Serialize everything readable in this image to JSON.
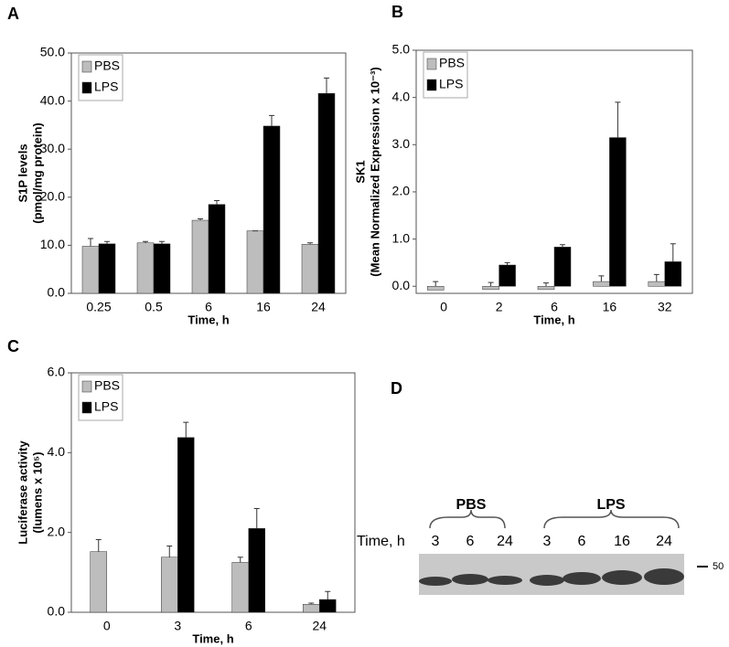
{
  "chart_data": [
    {
      "type": "bar",
      "panel": "A",
      "y_label": [
        "S1P levels",
        "(pmol/mg protein)"
      ],
      "x_label": "Time, h",
      "categories": [
        "0.25",
        "0.5",
        "6",
        "16",
        "24"
      ],
      "series": [
        {
          "name": "PBS",
          "color": "#bdbdbd",
          "values": [
            9.8,
            10.5,
            15.2,
            13.0,
            10.2
          ],
          "errors": [
            1.6,
            0.3,
            0.3,
            0.0,
            0.3
          ]
        },
        {
          "name": "LPS",
          "color": "#000000",
          "values": [
            10.3,
            10.3,
            18.5,
            34.8,
            41.6
          ],
          "errors": [
            0.5,
            0.5,
            0.8,
            2.2,
            3.2
          ]
        }
      ],
      "ylim": [
        0,
        50
      ],
      "yticks": [
        {
          "value": 0,
          "label": "0.0"
        },
        {
          "value": 10,
          "label": "10.0"
        },
        {
          "value": 20,
          "label": "20.0"
        },
        {
          "value": 30,
          "label": "30.0"
        },
        {
          "value": 40,
          "label": "40.0"
        },
        {
          "value": 50,
          "label": "50.0"
        }
      ]
    },
    {
      "type": "bar",
      "panel": "B",
      "y_label": [
        "SK1",
        "(Mean Normalized Expression x 10⁻³)"
      ],
      "x_label": "Time, h",
      "categories": [
        "0",
        "2",
        "6",
        "16",
        "32"
      ],
      "series": [
        {
          "name": "PBS",
          "color": "#bdbdbd",
          "values": [
            -0.08,
            -0.07,
            -0.07,
            0.1,
            0.1
          ],
          "errors": [
            0.1,
            0.08,
            0.07,
            0.12,
            0.15
          ]
        },
        {
          "name": "LPS",
          "color": "#000000",
          "values": [
            null,
            0.45,
            0.83,
            3.15,
            0.52
          ],
          "errors": [
            null,
            0.05,
            0.05,
            0.75,
            0.38
          ]
        }
      ],
      "ylim": [
        -0.15,
        5.0
      ],
      "yticks": [
        {
          "value": 0,
          "label": "0.0"
        },
        {
          "value": 1,
          "label": "1.0"
        },
        {
          "value": 2,
          "label": "2.0"
        },
        {
          "value": 3,
          "label": "3.0"
        },
        {
          "value": 4,
          "label": "4.0"
        },
        {
          "value": 5,
          "label": "5.0"
        }
      ]
    },
    {
      "type": "bar",
      "panel": "C",
      "y_label": [
        "Luciferase activity",
        "(lumens x 10⁵)"
      ],
      "x_label": "Time, h",
      "categories": [
        "0",
        "3",
        "6",
        "24"
      ],
      "series": [
        {
          "name": "PBS",
          "color": "#bdbdbd",
          "values": [
            1.52,
            1.38,
            1.25,
            0.2
          ],
          "errors": [
            0.3,
            0.28,
            0.13,
            0.03
          ]
        },
        {
          "name": "LPS",
          "color": "#000000",
          "values": [
            null,
            4.38,
            2.1,
            0.32
          ],
          "errors": [
            null,
            0.38,
            0.5,
            0.2
          ]
        }
      ],
      "ylim": [
        0,
        6
      ],
      "yticks": [
        {
          "value": 0,
          "label": "0.0"
        },
        {
          "value": 2,
          "label": "2.0"
        },
        {
          "value": 4,
          "label": "4.0"
        },
        {
          "value": 6,
          "label": "6.0"
        }
      ]
    }
  ],
  "blot": {
    "panel": "D",
    "groups": [
      "PBS",
      "LPS"
    ],
    "row_label": "Time, h",
    "lanes": [
      "3",
      "6",
      "24",
      "3",
      "6",
      "16",
      "24"
    ],
    "marker": "50"
  }
}
